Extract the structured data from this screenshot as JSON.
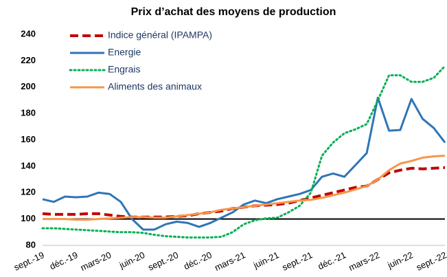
{
  "chart_data": {
    "type": "line",
    "title": "Prix d’achat des moyens de production",
    "categories": [
      "sept.-19",
      null,
      null,
      "déc.-19",
      null,
      null,
      "mars-20",
      null,
      null,
      "juin-20",
      null,
      null,
      "sept.-20",
      null,
      null,
      "déc.-20",
      null,
      null,
      "mars-21",
      null,
      null,
      "juin-21",
      null,
      null,
      "sept.-21",
      null,
      null,
      "déc.-21",
      null,
      null,
      "mars-22",
      null,
      null,
      "juin-22",
      null,
      null,
      "sept.-22"
    ],
    "series": [
      {
        "name": "Indice général (IPAMPA)",
        "color": "#c00000",
        "style": "dashed",
        "values": [
          104,
          103.5,
          103.5,
          103.5,
          104,
          104,
          103,
          102,
          101.5,
          101.5,
          101.5,
          101.5,
          102,
          102.5,
          104,
          105,
          106,
          108,
          109,
          110,
          110.5,
          111,
          112,
          114,
          116,
          118,
          120,
          122,
          124,
          125,
          130,
          135,
          137,
          138.5,
          138,
          138.5,
          139
        ]
      },
      {
        "name": "Energie",
        "color": "#2e75b6",
        "style": "solid",
        "values": [
          115,
          113,
          117,
          116.5,
          117,
          120,
          119,
          113,
          100,
          92,
          92,
          96,
          98,
          97,
          94,
          97,
          101,
          105,
          111,
          114,
          112,
          115,
          117,
          119,
          122,
          132,
          134.5,
          132,
          141,
          150,
          192,
          167,
          167.5,
          191,
          176,
          169,
          158
        ]
      },
      {
        "name": "Engrais",
        "color": "#00b050",
        "style": "dotted",
        "values": [
          93,
          93,
          92.5,
          92,
          91.5,
          91,
          90.5,
          90,
          90,
          89.5,
          88,
          87,
          86.5,
          86,
          86,
          86,
          86.5,
          90,
          96,
          99,
          100.5,
          101,
          105,
          110,
          120,
          148,
          158,
          165,
          168,
          172,
          190,
          209,
          209,
          204,
          204,
          207,
          216
        ]
      },
      {
        "name": "Aliments des animaux",
        "color": "#f79646",
        "style": "solid",
        "values": [
          100,
          100,
          100,
          99.5,
          99.5,
          100,
          100.5,
          101,
          101.5,
          101.5,
          101,
          101,
          102,
          103,
          104,
          105,
          107,
          108,
          109,
          110,
          111,
          112,
          113,
          114,
          114.5,
          116,
          118,
          120,
          122.5,
          125,
          130,
          137,
          142,
          144,
          146.5,
          147.5,
          148
        ]
      }
    ],
    "ylim": [
      80,
      240
    ],
    "yticks": [
      80,
      100,
      120,
      140,
      160,
      180,
      200,
      220,
      240
    ],
    "baseline": 100,
    "legend": "top-left"
  }
}
